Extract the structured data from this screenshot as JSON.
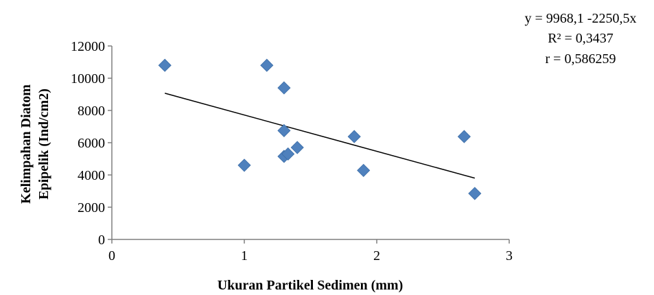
{
  "chart_data": {
    "type": "scatter",
    "title": "",
    "xlabel": "Ukuran Partikel Sedimen (mm)",
    "ylabel_lines": [
      "Kelimpahan Diatom",
      "Epipelik (Ind/cm2)"
    ],
    "xlim": [
      0,
      3
    ],
    "ylim": [
      0,
      12000
    ],
    "xticks": [
      0,
      1,
      2,
      3
    ],
    "yticks": [
      0,
      2000,
      4000,
      6000,
      8000,
      10000,
      12000
    ],
    "grid": false,
    "marker": "diamond",
    "marker_color": "#4f81bd",
    "points": [
      {
        "x": 0.4,
        "y": 10800
      },
      {
        "x": 1.0,
        "y": 4600
      },
      {
        "x": 1.17,
        "y": 10800
      },
      {
        "x": 1.3,
        "y": 9400
      },
      {
        "x": 1.3,
        "y": 6750
      },
      {
        "x": 1.3,
        "y": 5150
      },
      {
        "x": 1.33,
        "y": 5300
      },
      {
        "x": 1.4,
        "y": 5700
      },
      {
        "x": 1.83,
        "y": 6380
      },
      {
        "x": 1.9,
        "y": 4280
      },
      {
        "x": 2.66,
        "y": 6380
      },
      {
        "x": 2.74,
        "y": 2850
      }
    ],
    "trendline": {
      "x_start": 0.4,
      "x_end": 2.74,
      "intercept": 9968.1,
      "slope": -2250.5,
      "color": "#000000"
    },
    "annotation": [
      "y = 9968,1 -2250,5x",
      "R² = 0,3437",
      "r = 0,586259"
    ]
  }
}
